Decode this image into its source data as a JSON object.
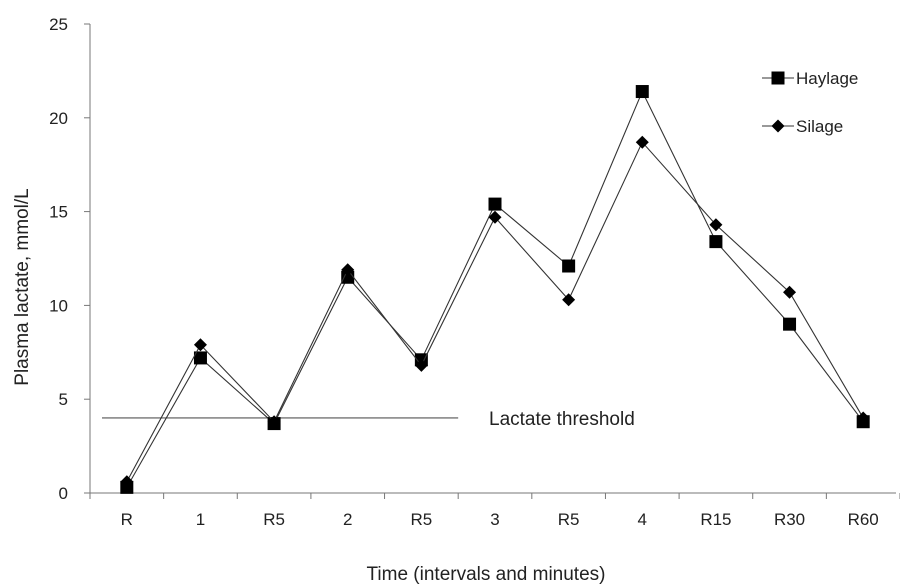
{
  "chart_data": {
    "type": "line",
    "categories": [
      "R",
      "1",
      "R5",
      "2",
      "R5",
      "3",
      "R5",
      "4",
      "R15",
      "R30",
      "R60"
    ],
    "series": [
      {
        "name": "Haylage",
        "marker": "square",
        "color": "#000000",
        "values": [
          0.3,
          7.2,
          3.7,
          11.5,
          7.1,
          15.4,
          12.1,
          21.4,
          13.4,
          9.0,
          3.8
        ]
      },
      {
        "name": "Silage",
        "marker": "diamond",
        "color": "#000000",
        "values": [
          0.6,
          7.9,
          3.8,
          11.9,
          6.8,
          14.7,
          10.3,
          18.7,
          14.3,
          10.7,
          4.0
        ]
      }
    ],
    "ylabel": "Plasma lactate, mmol/L",
    "xlabel": "Time (intervals and minutes)",
    "ylim": [
      0,
      25
    ],
    "yticks": [
      0,
      5,
      10,
      15,
      20,
      25
    ],
    "grid": false,
    "legend": "top-right",
    "threshold": {
      "value": 4,
      "label": "Lactate threshold",
      "from_category_index": 0,
      "to_category_index": 5
    }
  }
}
